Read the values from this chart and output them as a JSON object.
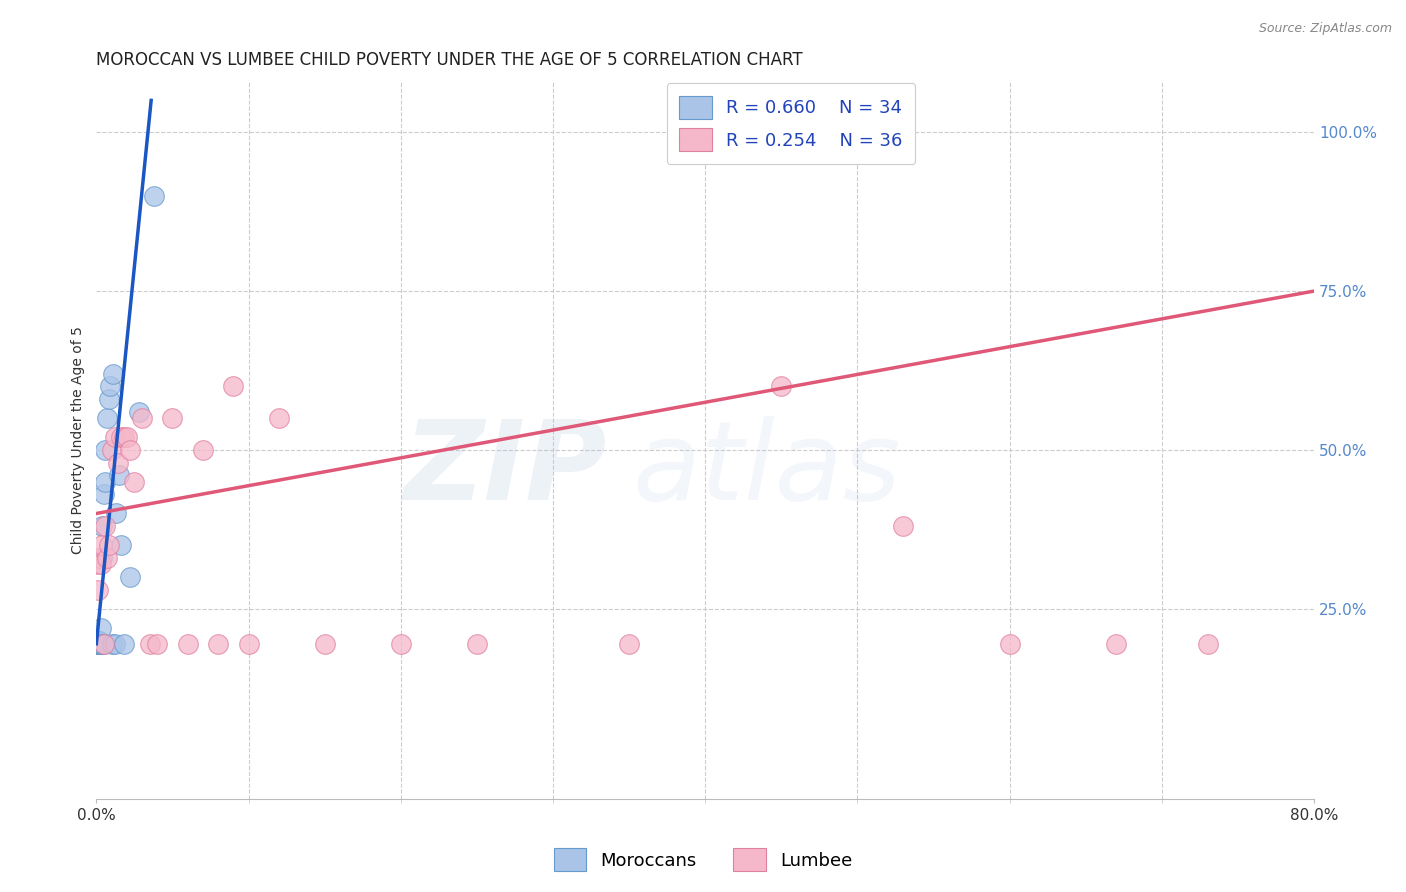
{
  "title": "MOROCCAN VS LUMBEE CHILD POVERTY UNDER THE AGE OF 5 CORRELATION CHART",
  "source": "Source: ZipAtlas.com",
  "ylabel": "Child Poverty Under the Age of 5",
  "xlim": [
    0.0,
    0.8
  ],
  "ylim": [
    -0.05,
    1.08
  ],
  "xticks": [
    0.0,
    0.8
  ],
  "xticklabels": [
    "0.0%",
    "80.0%"
  ],
  "yticks_right": [
    0.0,
    0.25,
    0.5,
    0.75,
    1.0
  ],
  "yticklabels_right": [
    "",
    "25.0%",
    "50.0%",
    "75.0%",
    "100.0%"
  ],
  "moroccan_color": "#aac4e8",
  "lumbee_color": "#f5b8ca",
  "moroccan_edge_color": "#6699cc",
  "lumbee_edge_color": "#e080a0",
  "moroccan_line_color": "#1a56c4",
  "lumbee_line_color": "#e05878",
  "legend_R_moroccan": "R = 0.660",
  "legend_N_moroccan": "N = 34",
  "legend_R_lumbee": "R = 0.254",
  "legend_N_lumbee": "N = 36",
  "watermark_zip": "ZIP",
  "watermark_atlas": "atlas",
  "background_color": "#ffffff",
  "grid_color": "#cccccc",
  "title_color": "#222222",
  "source_color": "#888888",
  "axis_label_color": "#333333",
  "tick_color_right": "#5588cc",
  "moroccan_x": [
    0.0005,
    0.0005,
    0.0008,
    0.001,
    0.001,
    0.0012,
    0.0015,
    0.0015,
    0.002,
    0.002,
    0.002,
    0.0025,
    0.003,
    0.003,
    0.0035,
    0.004,
    0.004,
    0.005,
    0.005,
    0.006,
    0.006,
    0.007,
    0.008,
    0.009,
    0.01,
    0.011,
    0.012,
    0.013,
    0.015,
    0.016,
    0.018,
    0.022,
    0.028,
    0.038
  ],
  "moroccan_y": [
    0.195,
    0.2,
    0.195,
    0.2,
    0.195,
    0.195,
    0.2,
    0.195,
    0.195,
    0.2,
    0.195,
    0.195,
    0.195,
    0.22,
    0.33,
    0.195,
    0.38,
    0.43,
    0.195,
    0.45,
    0.5,
    0.55,
    0.58,
    0.6,
    0.195,
    0.62,
    0.195,
    0.4,
    0.46,
    0.35,
    0.195,
    0.3,
    0.56,
    0.9
  ],
  "lumbee_x": [
    0.0005,
    0.001,
    0.002,
    0.003,
    0.004,
    0.005,
    0.006,
    0.007,
    0.008,
    0.01,
    0.012,
    0.014,
    0.016,
    0.018,
    0.02,
    0.022,
    0.025,
    0.03,
    0.035,
    0.04,
    0.05,
    0.06,
    0.07,
    0.08,
    0.09,
    0.1,
    0.12,
    0.15,
    0.2,
    0.25,
    0.35,
    0.45,
    0.53,
    0.6,
    0.67,
    0.73
  ],
  "lumbee_y": [
    0.32,
    0.28,
    0.33,
    0.32,
    0.35,
    0.195,
    0.38,
    0.33,
    0.35,
    0.5,
    0.52,
    0.48,
    0.52,
    0.52,
    0.52,
    0.5,
    0.45,
    0.55,
    0.195,
    0.195,
    0.55,
    0.195,
    0.5,
    0.195,
    0.6,
    0.195,
    0.55,
    0.195,
    0.195,
    0.195,
    0.195,
    0.6,
    0.38,
    0.195,
    0.195,
    0.195
  ],
  "moroccan_trendline_x": [
    0.0,
    0.036
  ],
  "moroccan_trendline_y": [
    0.195,
    1.05
  ],
  "lumbee_trendline_x": [
    0.0,
    0.8
  ],
  "lumbee_trendline_y": [
    0.4,
    0.75
  ],
  "title_fontsize": 12,
  "axis_label_fontsize": 10,
  "tick_fontsize": 11,
  "legend_fontsize": 13
}
